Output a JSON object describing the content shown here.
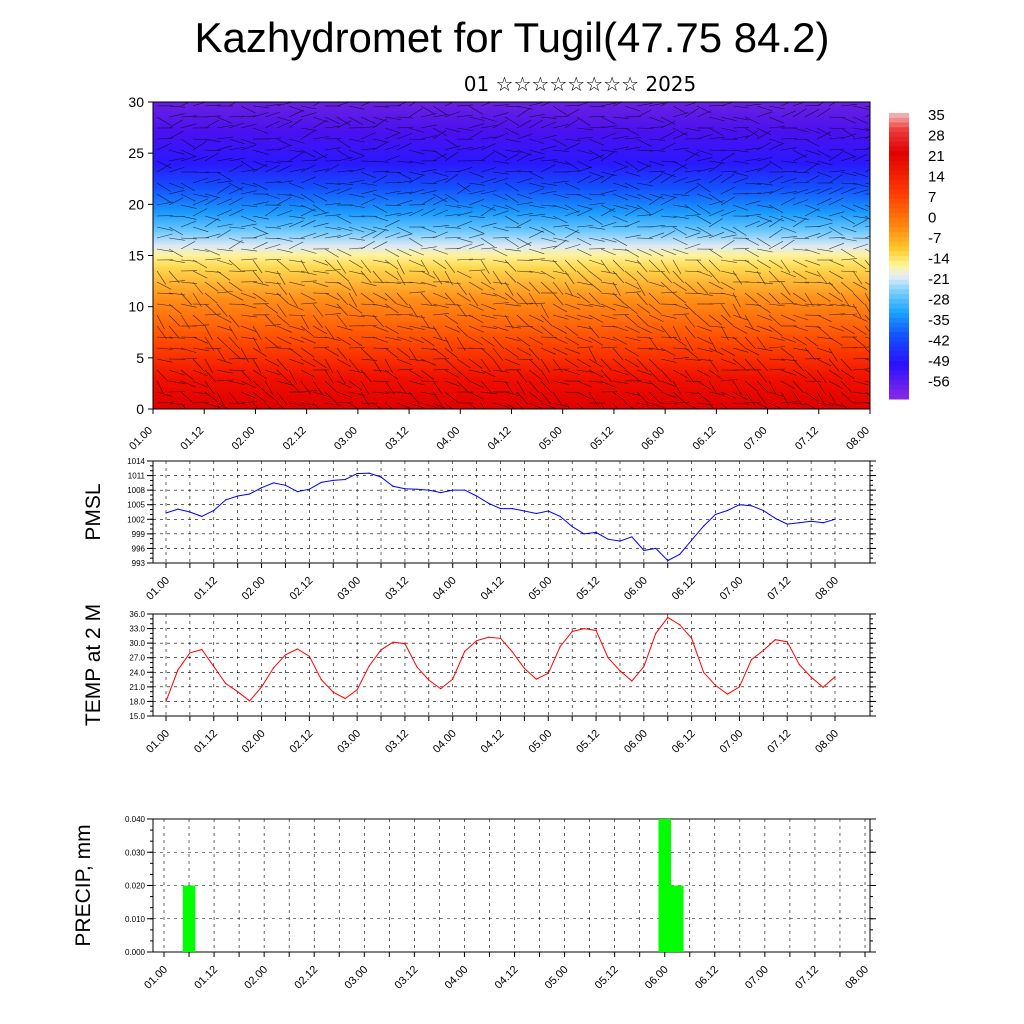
{
  "title": "Kazhydromet for Tugil(47.75 84.2)",
  "subtitle": "01 ☆☆☆☆☆☆☆☆ 2025",
  "time_ticks": [
    "01.00",
    "01.12",
    "02.00",
    "02.12",
    "03.00",
    "03.12",
    "04.00",
    "04.12",
    "05.00",
    "05.12",
    "06.00",
    "06.12",
    "07.00",
    "07.12",
    "08.00"
  ],
  "colors": {
    "pmsl_line": "#0000ff",
    "temp_line": "#ff0000",
    "precip_bar": "#00ff00",
    "colormap": [
      "#7a1fe0",
      "#3d00ff",
      "#0d5fff",
      "#25b8ff",
      "#d8e8f8",
      "#fff06a",
      "#ffbf3c",
      "#ff8a1a",
      "#ff4a0a",
      "#e50000",
      "#ee3030",
      "#f5b0b0"
    ]
  },
  "chart_data": [
    {
      "type": "heatmap",
      "panel": "cross-section",
      "ylim": [
        0,
        30
      ],
      "yticks": [
        0,
        5,
        10,
        15,
        20,
        25,
        30
      ],
      "colorbar_labels": [
        "35",
        "28",
        "21",
        "14",
        "7",
        "0",
        "-7",
        "-14",
        "-21",
        "-28",
        "-35",
        "-42",
        "-49",
        "-56"
      ],
      "description_value_range": [
        -60,
        35
      ]
    },
    {
      "type": "line",
      "ylabel": "PMSL",
      "ylim": [
        993,
        1014
      ],
      "yticks": [
        993,
        996,
        999,
        1002,
        1005,
        1008,
        1011,
        1014
      ],
      "grid": true,
      "x": [
        0,
        3,
        6,
        9,
        12,
        15,
        18,
        21,
        24,
        27,
        30,
        33,
        36,
        39,
        42,
        45,
        48,
        51,
        54,
        57,
        60,
        63,
        66,
        69,
        72,
        75,
        78,
        81,
        84,
        87,
        90,
        93,
        96,
        99,
        102,
        105,
        108,
        111,
        114,
        117,
        120,
        123,
        126,
        129,
        132,
        135,
        138,
        141,
        144,
        147,
        150,
        153,
        156,
        159,
        162,
        165,
        168
      ],
      "values": [
        1003.3,
        1004.1,
        1003.5,
        1002.6,
        1003.8,
        1006.0,
        1006.8,
        1007.2,
        1008.5,
        1009.5,
        1009.0,
        1007.7,
        1008.2,
        1009.6,
        1010.0,
        1010.2,
        1011.4,
        1011.5,
        1010.7,
        1008.8,
        1008.3,
        1008.2,
        1008.0,
        1007.5,
        1008.0,
        1008.0,
        1006.8,
        1005.3,
        1004.2,
        1004.2,
        1003.7,
        1003.2,
        1003.7,
        1002.6,
        1000.5,
        999.0,
        999.3,
        997.9,
        997.5,
        998.4,
        995.6,
        996.0,
        993.5,
        994.8,
        997.7,
        1000.6,
        1003.0,
        1003.8,
        1005.0,
        1004.8,
        1003.8,
        1002.2,
        1001.0,
        1001.3,
        1001.6,
        1001.3,
        1002.0
      ]
    },
    {
      "type": "line",
      "ylabel": "TEMP at 2 M",
      "ylim": [
        15.0,
        36.0
      ],
      "yticks": [
        "15.0",
        "18.0",
        "21.0",
        "24.0",
        "27.0",
        "30.0",
        "33.0",
        "36.0"
      ],
      "grid": true,
      "x": [
        0,
        3,
        6,
        9,
        12,
        15,
        18,
        21,
        24,
        27,
        30,
        33,
        36,
        39,
        42,
        45,
        48,
        51,
        54,
        57,
        60,
        63,
        66,
        69,
        72,
        75,
        78,
        81,
        84,
        87,
        90,
        93,
        96,
        99,
        102,
        105,
        108,
        111,
        114,
        117,
        120,
        123,
        126,
        129,
        132,
        135,
        138,
        141,
        144,
        147,
        150,
        153,
        156,
        159,
        162,
        165,
        168
      ],
      "values": [
        18.0,
        24.5,
        28.0,
        28.7,
        25.2,
        21.7,
        20.0,
        18.1,
        21.0,
        24.9,
        27.6,
        28.8,
        27.3,
        22.5,
        19.9,
        18.6,
        20.4,
        25.3,
        28.6,
        30.2,
        29.9,
        25.1,
        22.4,
        20.6,
        22.6,
        28.3,
        30.5,
        31.2,
        31.0,
        28.2,
        24.8,
        22.6,
        23.8,
        29.3,
        32.4,
        33.0,
        32.6,
        27.0,
        24.3,
        22.2,
        25.2,
        32.0,
        35.3,
        33.8,
        31.0,
        24.0,
        21.3,
        19.5,
        21.0,
        26.6,
        28.5,
        30.7,
        30.3,
        25.6,
        23.0,
        20.9,
        23.1
      ]
    },
    {
      "type": "bar",
      "ylabel": "PRECIP, mm",
      "ylim": [
        0,
        0.04
      ],
      "yticks": [
        "0.000",
        "0.010",
        "0.020",
        "0.030",
        "0.040"
      ],
      "grid": true,
      "x": [
        6,
        120,
        123
      ],
      "values": [
        0.02,
        0.04,
        0.02
      ]
    }
  ]
}
